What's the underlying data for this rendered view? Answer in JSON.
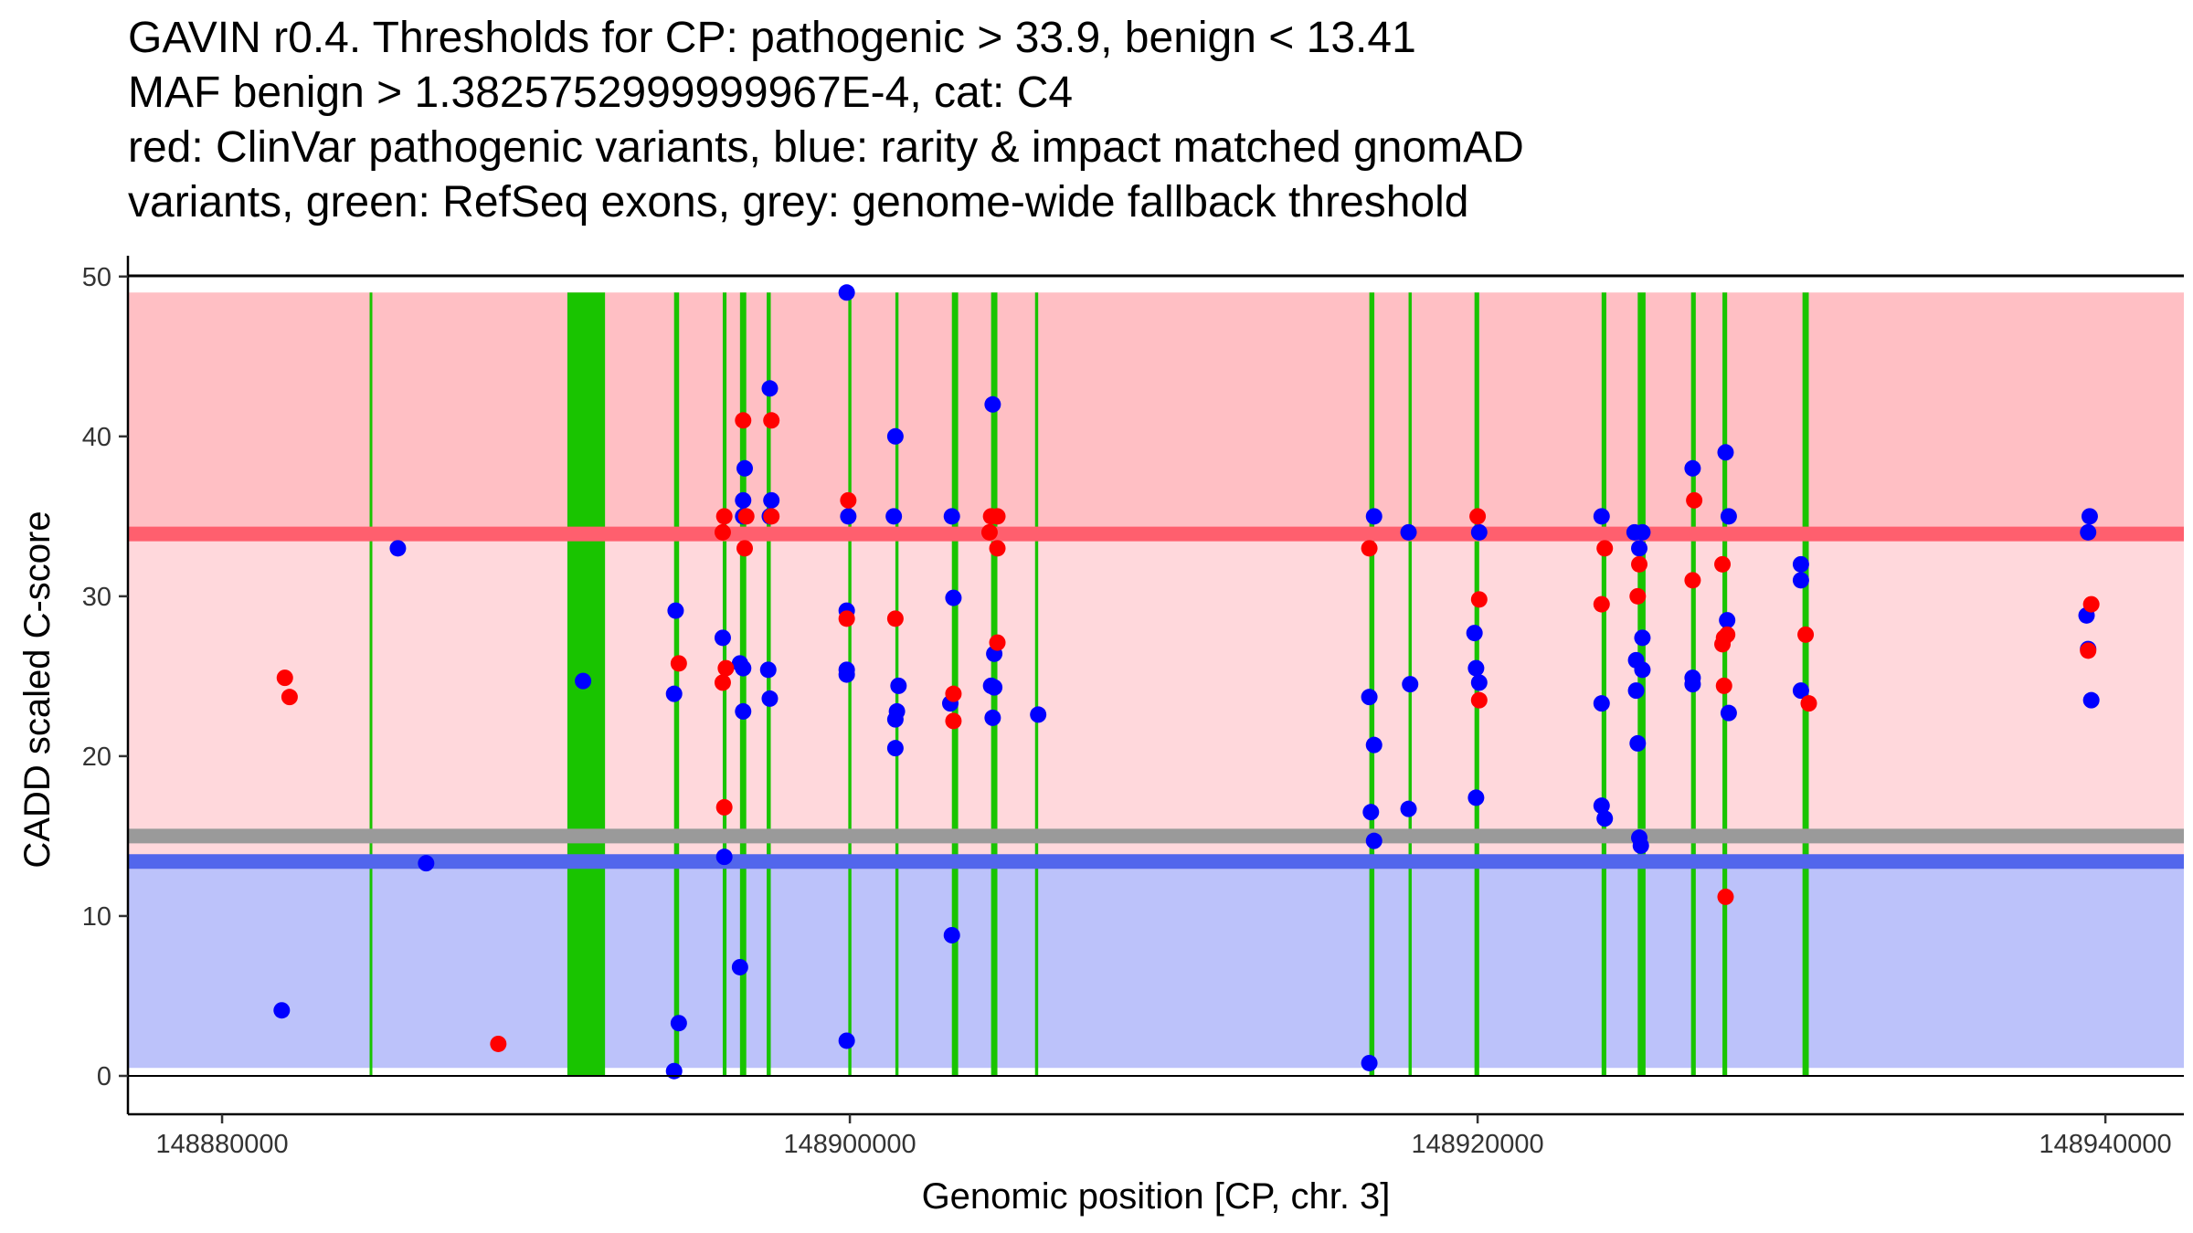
{
  "chart_data": {
    "type": "scatter",
    "title_lines": [
      "GAVIN r0.4. Thresholds for CP: pathogenic > 33.9, benign < 13.41",
      "MAF benign > 1.3825752999999967E-4, cat: C4",
      "red: ClinVar pathogenic variants, blue: rarity & impact matched gnomAD",
      "variants, green: RefSeq exons, grey: genome-wide fallback threshold"
    ],
    "xlabel": "Genomic position [CP, chr. 3]",
    "ylabel": "CADD scaled C-score",
    "xlim": [
      148877000,
      148942500
    ],
    "ylim": [
      -2.4,
      51.3
    ],
    "x_ticks": [
      148880000,
      148900000,
      148920000,
      148940000
    ],
    "x_tick_labels": [
      "148880000",
      "148900000",
      "148920000",
      "148940000"
    ],
    "y_ticks": [
      0,
      10,
      20,
      30,
      40,
      50
    ],
    "y_tick_labels": [
      "0",
      "10",
      "20",
      "30",
      "40",
      "50"
    ],
    "colors": {
      "pathogenic_zone": "#ffbfc4",
      "uncertain_zone": "#ffd8dc",
      "benign_zone": "#bcc2fa",
      "pathogenic_line": "#ff5f6e",
      "benign_line": "#5266ec",
      "fallback_line": "#9a9a9a",
      "exon": "#19c400",
      "clinvar": "#ff0000",
      "gnomad": "#0000ff"
    },
    "zones": {
      "x_range": [
        148877000,
        148942500
      ],
      "pathogenic": [
        33.9,
        49
      ],
      "uncertain": [
        13.41,
        33.9
      ],
      "benign": [
        0.5,
        13.41
      ]
    },
    "thresholds": {
      "pathogenic": 33.9,
      "benign": 13.41,
      "fallback": 15.0
    },
    "exons": [
      [
        148884700,
        148884780
      ],
      [
        148891000,
        148892200
      ],
      [
        148894400,
        148894560
      ],
      [
        148895950,
        148896070
      ],
      [
        148896500,
        148896700
      ],
      [
        148897350,
        148897480
      ],
      [
        148899950,
        148900050
      ],
      [
        148901450,
        148901550
      ],
      [
        148903250,
        148903450
      ],
      [
        148904500,
        148904700
      ],
      [
        148905900,
        148906000
      ],
      [
        148916550,
        148916710
      ],
      [
        148917800,
        148917900
      ],
      [
        148919900,
        148920050
      ],
      [
        148923950,
        148924100
      ],
      [
        148925100,
        148925350
      ],
      [
        148926800,
        148926950
      ],
      [
        148927800,
        148927950
      ],
      [
        148930350,
        148930550
      ]
    ],
    "series": [
      {
        "name": "gnomAD",
        "points": [
          [
            148881900,
            4.1
          ],
          [
            148885600,
            33.0
          ],
          [
            148886500,
            13.3
          ],
          [
            148891500,
            24.7
          ],
          [
            148894400,
            23.9
          ],
          [
            148894450,
            29.1
          ],
          [
            148894550,
            3.3
          ],
          [
            148894400,
            0.3
          ],
          [
            148895950,
            27.4
          ],
          [
            148896000,
            13.7
          ],
          [
            148896600,
            35.0
          ],
          [
            148896600,
            36.0
          ],
          [
            148896650,
            38.0
          ],
          [
            148896500,
            25.8
          ],
          [
            148896600,
            25.5
          ],
          [
            148896600,
            22.8
          ],
          [
            148896500,
            6.8
          ],
          [
            148897500,
            36.0
          ],
          [
            148897450,
            35.0
          ],
          [
            148897450,
            43.0
          ],
          [
            148897400,
            25.4
          ],
          [
            148897450,
            23.6
          ],
          [
            148899900,
            49.0
          ],
          [
            148899950,
            35.0
          ],
          [
            148899900,
            29.1
          ],
          [
            148899900,
            25.4
          ],
          [
            148899900,
            25.1
          ],
          [
            148899900,
            2.2
          ],
          [
            148901450,
            40.0
          ],
          [
            148901400,
            35.0
          ],
          [
            148901550,
            24.4
          ],
          [
            148901500,
            22.8
          ],
          [
            148901450,
            22.3
          ],
          [
            148901450,
            20.5
          ],
          [
            148903250,
            35.0
          ],
          [
            148903300,
            29.9
          ],
          [
            148903200,
            23.3
          ],
          [
            148903250,
            8.8
          ],
          [
            148904550,
            42.0
          ],
          [
            148904600,
            26.4
          ],
          [
            148904500,
            24.4
          ],
          [
            148904600,
            24.3
          ],
          [
            148904550,
            22.4
          ],
          [
            148906000,
            22.6
          ],
          [
            148916550,
            23.7
          ],
          [
            148916700,
            35.0
          ],
          [
            148916700,
            20.7
          ],
          [
            148916600,
            16.5
          ],
          [
            148916700,
            14.7
          ],
          [
            148916550,
            0.8
          ],
          [
            148917800,
            34.0
          ],
          [
            148917850,
            24.5
          ],
          [
            148917800,
            16.7
          ],
          [
            148919900,
            27.7
          ],
          [
            148920050,
            34.0
          ],
          [
            148919950,
            25.5
          ],
          [
            148920050,
            24.6
          ],
          [
            148919950,
            17.4
          ],
          [
            148923950,
            35.0
          ],
          [
            148923950,
            23.3
          ],
          [
            148923950,
            16.9
          ],
          [
            148924050,
            16.1
          ],
          [
            148925000,
            34.0
          ],
          [
            148925250,
            34.0
          ],
          [
            148925150,
            33.0
          ],
          [
            148925050,
            26.0
          ],
          [
            148925250,
            27.4
          ],
          [
            148925250,
            25.4
          ],
          [
            148925050,
            24.1
          ],
          [
            148925100,
            20.8
          ],
          [
            148925150,
            14.9
          ],
          [
            148925200,
            14.4
          ],
          [
            148926850,
            38.0
          ],
          [
            148926850,
            24.9
          ],
          [
            148926850,
            24.5
          ],
          [
            148927900,
            39.0
          ],
          [
            148928000,
            35.0
          ],
          [
            148927950,
            28.5
          ],
          [
            148928000,
            22.7
          ],
          [
            148930300,
            32.0
          ],
          [
            148930300,
            31.0
          ],
          [
            148930300,
            24.1
          ],
          [
            148939500,
            35.0
          ],
          [
            148939450,
            34.0
          ],
          [
            148939400,
            28.8
          ],
          [
            148939450,
            26.7
          ],
          [
            148939550,
            23.5
          ]
        ]
      },
      {
        "name": "ClinVar",
        "points": [
          [
            148882000,
            24.9
          ],
          [
            148882150,
            23.7
          ],
          [
            148888800,
            2.0
          ],
          [
            148894550,
            25.8
          ],
          [
            148896000,
            35.0
          ],
          [
            148895950,
            34.0
          ],
          [
            148896050,
            25.5
          ],
          [
            148895950,
            24.6
          ],
          [
            148896000,
            16.8
          ],
          [
            148896600,
            41.0
          ],
          [
            148896700,
            35.0
          ],
          [
            148896650,
            33.0
          ],
          [
            148897500,
            41.0
          ],
          [
            148897500,
            35.0
          ],
          [
            148899950,
            36.0
          ],
          [
            148899900,
            28.6
          ],
          [
            148901450,
            28.6
          ],
          [
            148903300,
            23.9
          ],
          [
            148903300,
            22.2
          ],
          [
            148904500,
            35.0
          ],
          [
            148904700,
            35.0
          ],
          [
            148904450,
            34.0
          ],
          [
            148904700,
            33.0
          ],
          [
            148904700,
            27.1
          ],
          [
            148916550,
            33.0
          ],
          [
            148920000,
            35.0
          ],
          [
            148920050,
            29.8
          ],
          [
            148920050,
            23.5
          ],
          [
            148924050,
            33.0
          ],
          [
            148923950,
            29.5
          ],
          [
            148925150,
            32.0
          ],
          [
            148925100,
            30.0
          ],
          [
            148926900,
            36.0
          ],
          [
            148926850,
            31.0
          ],
          [
            148927800,
            32.0
          ],
          [
            148927850,
            27.4
          ],
          [
            148927950,
            27.6
          ],
          [
            148927800,
            27.0
          ],
          [
            148927850,
            24.4
          ],
          [
            148927900,
            11.2
          ],
          [
            148930450,
            27.6
          ],
          [
            148930550,
            23.3
          ],
          [
            148939550,
            29.5
          ],
          [
            148939450,
            26.6
          ]
        ]
      }
    ]
  }
}
